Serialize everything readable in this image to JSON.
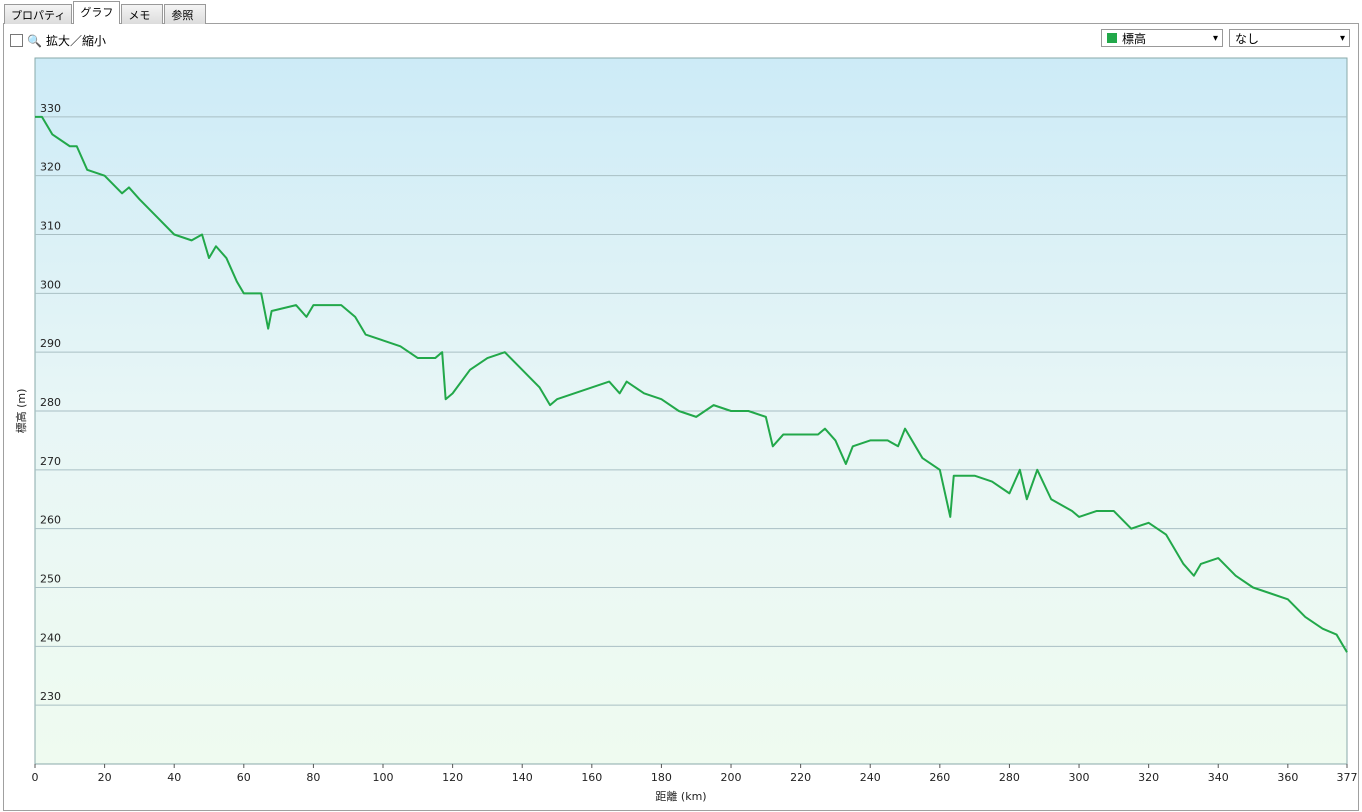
{
  "tabs": [
    "プロパティ",
    "グラフ",
    "メモ",
    "参照"
  ],
  "toolbar": {
    "zoom_label": "拡大／縮小",
    "series_select": "標高",
    "compare_select": "なし"
  },
  "chart_data": {
    "type": "line",
    "xlabel": "距離 (km)",
    "ylabel": "標高 (m)",
    "color": "#22a84a",
    "grid": true,
    "x": [
      0,
      2,
      5,
      10,
      12,
      15,
      20,
      25,
      27,
      30,
      35,
      40,
      45,
      48,
      50,
      52,
      55,
      58,
      60,
      65,
      67,
      68,
      75,
      78,
      80,
      85,
      88,
      92,
      95,
      100,
      105,
      110,
      115,
      117,
      118,
      120,
      125,
      130,
      135,
      140,
      145,
      148,
      150,
      155,
      160,
      165,
      168,
      170,
      175,
      180,
      185,
      190,
      195,
      200,
      205,
      210,
      212,
      215,
      220,
      225,
      227,
      230,
      233,
      235,
      240,
      245,
      248,
      250,
      255,
      260,
      263,
      264,
      265,
      270,
      275,
      280,
      283,
      285,
      288,
      292,
      298,
      300,
      305,
      310,
      315,
      320,
      325,
      330,
      333,
      335,
      340,
      345,
      350,
      355,
      360,
      365,
      370,
      374,
      377
    ],
    "values": [
      330,
      330,
      327,
      325,
      325,
      321,
      320,
      317,
      318,
      316,
      313,
      310,
      309,
      310,
      306,
      308,
      306,
      302,
      300,
      300,
      294,
      297,
      298,
      296,
      298,
      298,
      298,
      296,
      293,
      292,
      291,
      289,
      289,
      290,
      282,
      283,
      287,
      289,
      290,
      287,
      284,
      281,
      282,
      283,
      284,
      285,
      283,
      285,
      283,
      282,
      280,
      279,
      281,
      280,
      280,
      279,
      274,
      276,
      276,
      276,
      277,
      275,
      271,
      274,
      275,
      275,
      274,
      277,
      272,
      270,
      262,
      269,
      269,
      269,
      268,
      266,
      270,
      265,
      270,
      265,
      263,
      262,
      263,
      263,
      260,
      261,
      259,
      254,
      252,
      254,
      255,
      252,
      250,
      249,
      248,
      245,
      243,
      242,
      239
    ],
    "xlim": [
      0,
      377
    ],
    "ylim": [
      220,
      340
    ],
    "xticks": [
      0,
      20,
      40,
      60,
      80,
      100,
      120,
      140,
      160,
      180,
      200,
      220,
      240,
      260,
      280,
      300,
      320,
      340,
      360,
      377
    ],
    "yticks": [
      230,
      240,
      250,
      260,
      270,
      280,
      290,
      300,
      310,
      320,
      330
    ]
  }
}
